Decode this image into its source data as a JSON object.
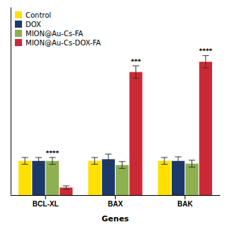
{
  "chart_data": {
    "type": "bar",
    "xlabel": "Genes",
    "categories": [
      "BCL-XL",
      "BAX",
      "BAK"
    ],
    "series": [
      {
        "name": "Control",
        "color": "#FFE000",
        "values": [
          1.0,
          1.0,
          1.0
        ],
        "errors": [
          0.1,
          0.1,
          0.1
        ]
      },
      {
        "name": "DOX",
        "color": "#1B3A6B",
        "values": [
          1.0,
          1.05,
          1.0
        ],
        "errors": [
          0.1,
          0.15,
          0.12
        ]
      },
      {
        "name": "MION@Au-Cs-FA",
        "color": "#8DB050",
        "values": [
          1.0,
          0.88,
          0.92
        ],
        "errors": [
          0.1,
          0.1,
          0.1
        ]
      },
      {
        "name": "MION@Au-Cs-DOX-FA",
        "color": "#CC2936",
        "values": [
          0.22,
          3.6,
          3.9
        ],
        "errors": [
          0.05,
          0.18,
          0.18
        ]
      }
    ],
    "annotations": [
      {
        "text": "****",
        "category": "BCL-XL",
        "series": "MION@Au-Cs-FA"
      },
      {
        "text": "***",
        "category": "BAX",
        "series": "MION@Au-Cs-DOX-FA"
      },
      {
        "text": "****",
        "category": "BAK",
        "series": "MION@Au-Cs-DOX-FA"
      }
    ],
    "ylim": [
      0,
      5.5
    ],
    "yticks": [],
    "tick_labels": "x",
    "grid": false,
    "legend": "upper left"
  }
}
